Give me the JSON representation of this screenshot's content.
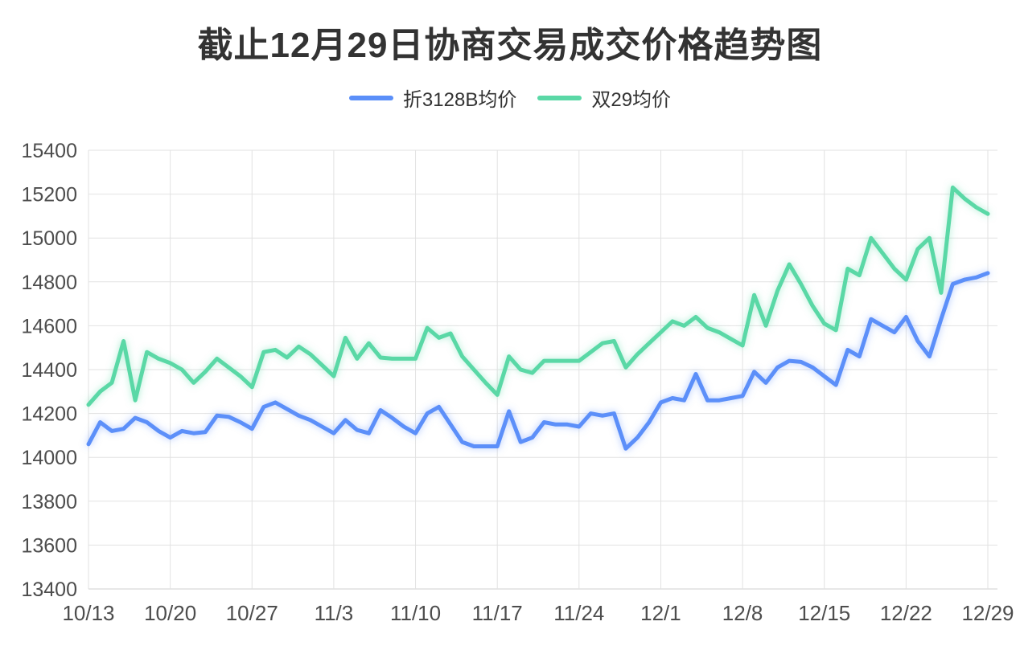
{
  "chart_data": {
    "type": "line",
    "title": "截止12月29日协商交易成交价格趋势图",
    "xlabel": "",
    "ylabel": "",
    "ylim": [
      13400,
      15400
    ],
    "y_ticks": [
      13400,
      13600,
      13800,
      14000,
      14200,
      14400,
      14600,
      14800,
      15000,
      15200,
      15400
    ],
    "grid": true,
    "legend_position": "top",
    "x_tick_labels": [
      "10/13",
      "10/20",
      "10/27",
      "11/3",
      "11/10",
      "11/17",
      "11/24",
      "12/1",
      "12/8",
      "12/15",
      "12/22",
      "12/29"
    ],
    "x_tick_indices": [
      0,
      7,
      14,
      21,
      28,
      35,
      42,
      49,
      56,
      63,
      70,
      77
    ],
    "x": [
      "10/13",
      "10/14",
      "10/15",
      "10/16",
      "10/17",
      "10/18",
      "10/19",
      "10/20",
      "10/21",
      "10/22",
      "10/23",
      "10/24",
      "10/25",
      "10/26",
      "10/27",
      "10/28",
      "10/29",
      "10/30",
      "10/31",
      "11/1",
      "11/2",
      "11/3",
      "11/4",
      "11/5",
      "11/6",
      "11/7",
      "11/8",
      "11/9",
      "11/10",
      "11/11",
      "11/12",
      "11/13",
      "11/14",
      "11/15",
      "11/16",
      "11/17",
      "11/18",
      "11/19",
      "11/20",
      "11/21",
      "11/22",
      "11/23",
      "11/24",
      "11/25",
      "11/26",
      "11/27",
      "11/28",
      "11/29",
      "11/30",
      "12/1",
      "12/2",
      "12/3",
      "12/4",
      "12/5",
      "12/6",
      "12/7",
      "12/8",
      "12/9",
      "12/10",
      "12/11",
      "12/12",
      "12/13",
      "12/14",
      "12/15",
      "12/16",
      "12/17",
      "12/18",
      "12/19",
      "12/20",
      "12/21",
      "12/22",
      "12/23",
      "12/24",
      "12/25",
      "12/26",
      "12/27",
      "12/28",
      "12/29"
    ],
    "series": [
      {
        "name": "折3128B均价",
        "color": "#5B8FF9",
        "values": [
          14060,
          14160,
          14120,
          14130,
          14180,
          14160,
          14120,
          14090,
          14120,
          14110,
          14115,
          14190,
          14185,
          14160,
          14130,
          14230,
          14250,
          14220,
          14190,
          14170,
          14140,
          14110,
          14170,
          14125,
          14110,
          14215,
          14180,
          14140,
          14110,
          14200,
          14230,
          14150,
          14070,
          14050,
          14050,
          14050,
          14210,
          14070,
          14090,
          14160,
          14150,
          14150,
          14140,
          14200,
          14190,
          14200,
          14040,
          14090,
          14160,
          14250,
          14270,
          14260,
          14380,
          14260,
          14260,
          14270,
          14280,
          14390,
          14340,
          14410,
          14440,
          14435,
          14410,
          14370,
          14330,
          14490,
          14460,
          14630,
          14600,
          14570,
          14640,
          14530,
          14460,
          14630,
          14790,
          14810,
          14820,
          14840
        ]
      },
      {
        "name": "双29均价",
        "color": "#5AD8A6",
        "values": [
          14240,
          14300,
          14340,
          14530,
          14260,
          14480,
          14450,
          14430,
          14400,
          14340,
          14390,
          14450,
          14410,
          14370,
          14320,
          14480,
          14490,
          14455,
          14505,
          14470,
          14420,
          14370,
          14545,
          14450,
          14520,
          14455,
          14450,
          14450,
          14450,
          14590,
          14545,
          14565,
          14460,
          14400,
          14340,
          14285,
          14460,
          14400,
          14385,
          14440,
          14440,
          14440,
          14440,
          14480,
          14520,
          14530,
          14410,
          14470,
          14520,
          14570,
          14620,
          14600,
          14640,
          14590,
          14570,
          14540,
          14510,
          14740,
          14600,
          14760,
          14880,
          14790,
          14690,
          14610,
          14580,
          14860,
          14830,
          15000,
          14930,
          14860,
          14810,
          14950,
          15000,
          14750,
          15230,
          15180,
          15140,
          15110
        ]
      }
    ],
    "style": {
      "grid_color": "#e2e2e2",
      "axis_line_color": "#cfcfcf",
      "tick_label_color": "#4d4d4d",
      "title_color": "#333333",
      "background": "#ffffff"
    }
  }
}
